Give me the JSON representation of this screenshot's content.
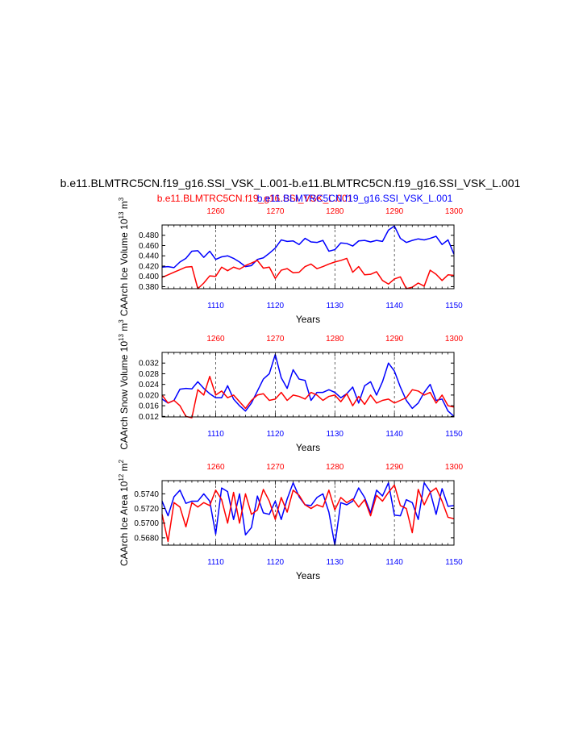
{
  "header": {
    "title": "b.e11.BLMTRC5CN.f19_g16.SSI_VSK_L.001-b.e11.BLMTRC5CN.f19_g16.SSI_VSK_L.001",
    "subtitle_red": "b.e11.BLMTRC5CN.f19_g16.SSI_VSK_L.001",
    "subtitle_blue": "b.e11.BLMTRC5CN.f19_g16.SSI_VSK_L.001"
  },
  "colors": {
    "series_red": "#ff0000",
    "series_blue": "#0000ff",
    "frame": "#000000"
  },
  "chart_data": [
    {
      "type": "line",
      "ylabel": "CAArch Ice Volume 10^13 m^3",
      "ylabel_main": "CAArch Ice Volume 10",
      "ylabel_exp1": "13",
      "ylabel_mid": " m",
      "ylabel_exp2": "3",
      "xlabel": "Years",
      "xlim_bottom": [
        1101,
        1150
      ],
      "xlim_top": [
        1251,
        1300
      ],
      "xticks_bottom": [
        "1110",
        "1120",
        "1130",
        "1140",
        "1150"
      ],
      "xticks_top": [
        "1260",
        "1270",
        "1280",
        "1290",
        "1300"
      ],
      "ylim": [
        0.376,
        0.5
      ],
      "yticks": [
        "0.380",
        "0.400",
        "0.420",
        "0.440",
        "0.460",
        "0.480"
      ],
      "ytick_values": [
        0.38,
        0.4,
        0.42,
        0.44,
        0.46,
        0.48
      ],
      "series": [
        {
          "color": "blue",
          "values": [
            0.418,
            0.419,
            0.417,
            0.428,
            0.435,
            0.449,
            0.45,
            0.437,
            0.449,
            0.433,
            0.438,
            0.44,
            0.435,
            0.428,
            0.419,
            0.421,
            0.433,
            0.436,
            0.445,
            0.455,
            0.471,
            0.468,
            0.469,
            0.462,
            0.474,
            0.467,
            0.466,
            0.47,
            0.449,
            0.452,
            0.465,
            0.464,
            0.459,
            0.469,
            0.47,
            0.467,
            0.47,
            0.468,
            0.49,
            0.498,
            0.474,
            0.466,
            0.47,
            0.473,
            0.471,
            0.474,
            0.478,
            0.462,
            0.471,
            0.443
          ]
        },
        {
          "color": "red",
          "values": [
            0.398,
            0.403,
            0.408,
            0.413,
            0.418,
            0.419,
            0.376,
            0.387,
            0.401,
            0.4,
            0.418,
            0.411,
            0.418,
            0.414,
            0.421,
            0.426,
            0.431,
            0.416,
            0.418,
            0.396,
            0.412,
            0.415,
            0.407,
            0.408,
            0.419,
            0.424,
            0.415,
            0.419,
            0.424,
            0.428,
            0.431,
            0.435,
            0.408,
            0.419,
            0.403,
            0.404,
            0.409,
            0.392,
            0.385,
            0.395,
            0.399,
            0.376,
            0.379,
            0.387,
            0.381,
            0.412,
            0.404,
            0.392,
            0.403,
            0.402
          ]
        }
      ]
    },
    {
      "type": "line",
      "ylabel": "CAArch Snow Volume 10^13 m^3",
      "ylabel_main": "CAArch Snow Volume 10",
      "ylabel_exp1": "13",
      "ylabel_mid": " m",
      "ylabel_exp2": "3",
      "xlabel": "Years",
      "xlim_bottom": [
        1101,
        1150
      ],
      "xlim_top": [
        1251,
        1300
      ],
      "xticks_bottom": [
        "1110",
        "1120",
        "1130",
        "1140",
        "1150"
      ],
      "xticks_top": [
        "1260",
        "1270",
        "1280",
        "1290",
        "1300"
      ],
      "ylim": [
        0.0118,
        0.036
      ],
      "yticks": [
        "0.012",
        "0.016",
        "0.020",
        "0.024",
        "0.028",
        "0.032"
      ],
      "ytick_values": [
        0.012,
        0.016,
        0.02,
        0.024,
        0.028,
        0.032
      ],
      "series": [
        {
          "color": "blue",
          "values": [
            0.0185,
            0.017,
            0.018,
            0.0222,
            0.0225,
            0.0223,
            0.025,
            0.0225,
            0.0205,
            0.019,
            0.019,
            0.0235,
            0.0185,
            0.016,
            0.014,
            0.017,
            0.0215,
            0.026,
            0.028,
            0.0352,
            0.0265,
            0.0225,
            0.0295,
            0.026,
            0.0255,
            0.018,
            0.021,
            0.021,
            0.022,
            0.021,
            0.019,
            0.0205,
            0.023,
            0.017,
            0.0235,
            0.025,
            0.02,
            0.025,
            0.032,
            0.029,
            0.023,
            0.018,
            0.015,
            0.017,
            0.021,
            0.024,
            0.018,
            0.0185,
            0.014,
            0.012
          ]
        },
        {
          "color": "red",
          "values": [
            0.02,
            0.017,
            0.018,
            0.016,
            0.012,
            0.0115,
            0.022,
            0.02,
            0.027,
            0.02,
            0.0215,
            0.019,
            0.02,
            0.0175,
            0.015,
            0.018,
            0.02,
            0.0205,
            0.018,
            0.0185,
            0.021,
            0.018,
            0.02,
            0.0195,
            0.0185,
            0.021,
            0.02,
            0.018,
            0.0195,
            0.02,
            0.0175,
            0.0205,
            0.016,
            0.0195,
            0.0165,
            0.02,
            0.017,
            0.018,
            0.0185,
            0.017,
            0.018,
            0.019,
            0.022,
            0.0215,
            0.02,
            0.021,
            0.017,
            0.02,
            0.016,
            0.0155
          ]
        }
      ]
    },
    {
      "type": "line",
      "ylabel": "CAArch Ice Area 10^12 m^2",
      "ylabel_main": "CAArch Ice Area 10",
      "ylabel_exp1": "12",
      "ylabel_mid": " m",
      "ylabel_exp2": "2",
      "xlabel": "Years",
      "xlim_bottom": [
        1101,
        1150
      ],
      "xlim_top": [
        1251,
        1300
      ],
      "xticks_bottom": [
        "1110",
        "1120",
        "1130",
        "1140",
        "1150"
      ],
      "xticks_top": [
        "1260",
        "1270",
        "1280",
        "1290",
        "1300"
      ],
      "ylim": [
        0.567,
        0.5758
      ],
      "yticks": [
        "0.5680",
        "0.5700",
        "0.5720",
        "0.5740"
      ],
      "ytick_values": [
        0.568,
        0.57,
        0.572,
        0.574
      ],
      "series": [
        {
          "color": "blue",
          "values": [
            0.573,
            0.571,
            0.5736,
            0.5745,
            0.5727,
            0.573,
            0.573,
            0.574,
            0.573,
            0.5685,
            0.5748,
            0.5743,
            0.5705,
            0.574,
            0.5684,
            0.5694,
            0.5737,
            0.5714,
            0.5712,
            0.573,
            0.5705,
            0.5733,
            0.5755,
            0.5736,
            0.5725,
            0.5724,
            0.5735,
            0.574,
            0.5715,
            0.567,
            0.5728,
            0.5725,
            0.573,
            0.5748,
            0.5735,
            0.5714,
            0.5745,
            0.5737,
            0.5755,
            0.5711,
            0.571,
            0.5732,
            0.5728,
            0.5705,
            0.5755,
            0.5743,
            0.5712,
            0.5747,
            0.5723,
            0.5724
          ]
        },
        {
          "color": "red",
          "values": [
            0.5712,
            0.5675,
            0.5728,
            0.5722,
            0.5695,
            0.5728,
            0.5722,
            0.5728,
            0.5724,
            0.5745,
            0.5732,
            0.57,
            0.5742,
            0.57,
            0.574,
            0.5712,
            0.5718,
            0.5746,
            0.573,
            0.5705,
            0.5735,
            0.5715,
            0.5745,
            0.5738,
            0.5725,
            0.572,
            0.5725,
            0.5722,
            0.5745,
            0.5718,
            0.5735,
            0.5728,
            0.5733,
            0.5722,
            0.5732,
            0.571,
            0.5738,
            0.573,
            0.5742,
            0.5752,
            0.5724,
            0.572,
            0.5687,
            0.5746,
            0.5725,
            0.5742,
            0.5748,
            0.573,
            0.5708,
            0.5706
          ]
        }
      ]
    }
  ]
}
